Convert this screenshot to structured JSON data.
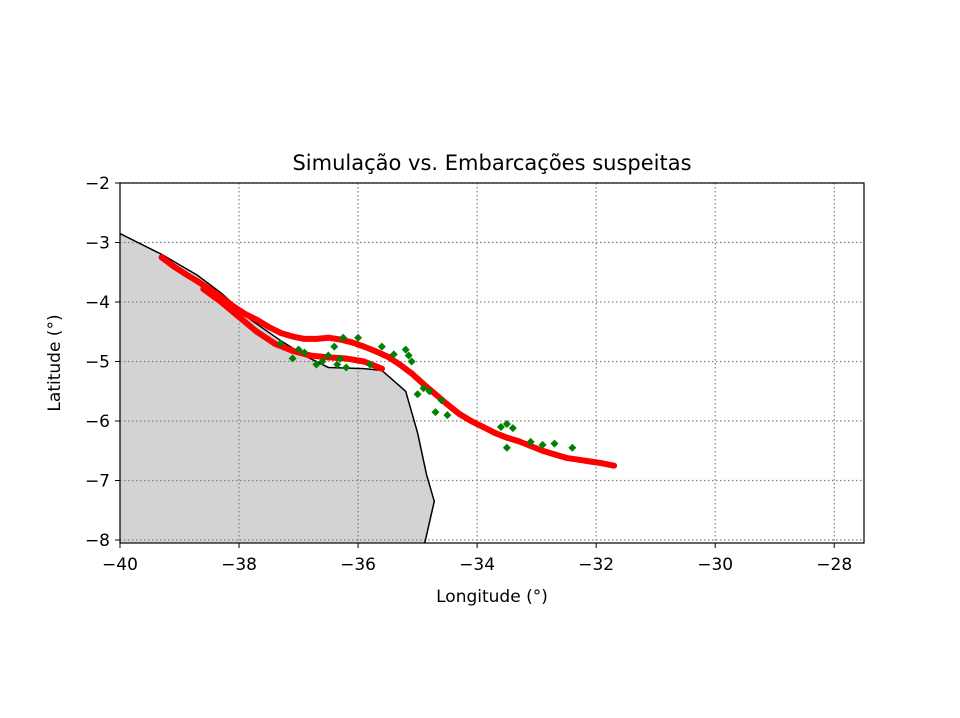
{
  "chart_data": {
    "type": "scatter",
    "title": "Simulação vs. Embarcações suspeitas",
    "xlabel": "Longitude (°)",
    "ylabel": "Latitude (°)",
    "xlim": [
      -40,
      -27.5
    ],
    "ylim": [
      -8.05,
      -2
    ],
    "xticks": [
      -40,
      -38,
      -36,
      -34,
      -32,
      -30,
      -28
    ],
    "yticks": [
      -8,
      -7,
      -6,
      -5,
      -4,
      -3,
      -2
    ],
    "xtick_labels": [
      "−40",
      "−38",
      "−36",
      "−34",
      "−32",
      "−30",
      "−28"
    ],
    "ytick_labels": [
      "−8",
      "−7",
      "−6",
      "−5",
      "−4",
      "−3",
      "−2"
    ],
    "grid": true,
    "colors": {
      "land": "#d3d3d3",
      "coastline": "#000000",
      "simulation": "#ff0000",
      "vessels": "#008000",
      "grid": "#808080"
    },
    "coastline": [
      [
        -40,
        -2.85
      ],
      [
        -39.3,
        -3.2
      ],
      [
        -38.7,
        -3.55
      ],
      [
        -38.3,
        -3.85
      ],
      [
        -37.8,
        -4.3
      ],
      [
        -37.3,
        -4.65
      ],
      [
        -36.9,
        -4.9
      ],
      [
        -36.5,
        -5.1
      ],
      [
        -35.9,
        -5.12
      ],
      [
        -35.6,
        -5.15
      ],
      [
        -35.2,
        -5.5
      ],
      [
        -35.0,
        -6.2
      ],
      [
        -34.85,
        -6.9
      ],
      [
        -34.72,
        -7.35
      ],
      [
        -34.88,
        -8.05
      ]
    ],
    "series": [
      {
        "kind": "simulation",
        "x": [
          -39.3,
          -39.1,
          -38.9,
          -38.7,
          -38.5,
          -38.3,
          -38.1,
          -37.9,
          -37.7,
          -37.5,
          -37.3,
          -37.1,
          -36.9,
          -36.7,
          -36.5,
          -36.3,
          -36.1,
          -35.9,
          -35.7,
          -35.5,
          -35.3,
          -35.1,
          -34.9,
          -34.7,
          -34.5,
          -34.3,
          -34.1,
          -33.9,
          -33.7,
          -33.5,
          -33.3,
          -33.1,
          -32.9,
          -32.7,
          -32.5,
          -32.3,
          -32.1,
          -31.9,
          -31.7
        ],
        "y": [
          -3.25,
          -3.4,
          -3.53,
          -3.65,
          -3.78,
          -3.92,
          -4.07,
          -4.2,
          -4.3,
          -4.42,
          -4.52,
          -4.58,
          -4.62,
          -4.62,
          -4.6,
          -4.63,
          -4.68,
          -4.75,
          -4.83,
          -4.92,
          -5.05,
          -5.2,
          -5.38,
          -5.55,
          -5.72,
          -5.88,
          -6.0,
          -6.1,
          -6.2,
          -6.28,
          -6.34,
          -6.42,
          -6.5,
          -6.56,
          -6.62,
          -6.65,
          -6.68,
          -6.71,
          -6.75
        ]
      },
      {
        "kind": "simulation",
        "x": [
          -38.6,
          -38.3,
          -38.0,
          -37.7,
          -37.4,
          -37.1,
          -36.8,
          -36.5,
          -36.2,
          -35.9,
          -35.6
        ],
        "y": [
          -3.78,
          -4.0,
          -4.25,
          -4.5,
          -4.7,
          -4.82,
          -4.9,
          -4.93,
          -4.95,
          -5.0,
          -5.12
        ]
      },
      {
        "kind": "vessels",
        "x": [
          -37.3,
          -37.1,
          -37.0,
          -36.9,
          -36.7,
          -36.6,
          -36.5,
          -36.4,
          -36.35,
          -36.3,
          -36.25,
          -36.2,
          -36.0,
          -35.8,
          -35.6,
          -35.4,
          -35.2,
          -35.15,
          -35.1,
          -35.0,
          -34.9,
          -34.8,
          -34.7,
          -34.6,
          -34.5,
          -33.6,
          -33.5,
          -33.5,
          -33.4,
          -33.1,
          -32.9,
          -32.7,
          -32.4
        ],
        "y": [
          -4.7,
          -4.95,
          -4.8,
          -4.85,
          -5.05,
          -5.0,
          -4.9,
          -4.75,
          -5.05,
          -4.95,
          -4.6,
          -5.1,
          -4.6,
          -5.05,
          -4.75,
          -4.88,
          -4.8,
          -4.9,
          -5.0,
          -5.55,
          -5.45,
          -5.5,
          -5.85,
          -5.65,
          -5.9,
          -6.1,
          -6.45,
          -6.05,
          -6.12,
          -6.35,
          -6.4,
          -6.38,
          -6.45
        ]
      }
    ]
  }
}
